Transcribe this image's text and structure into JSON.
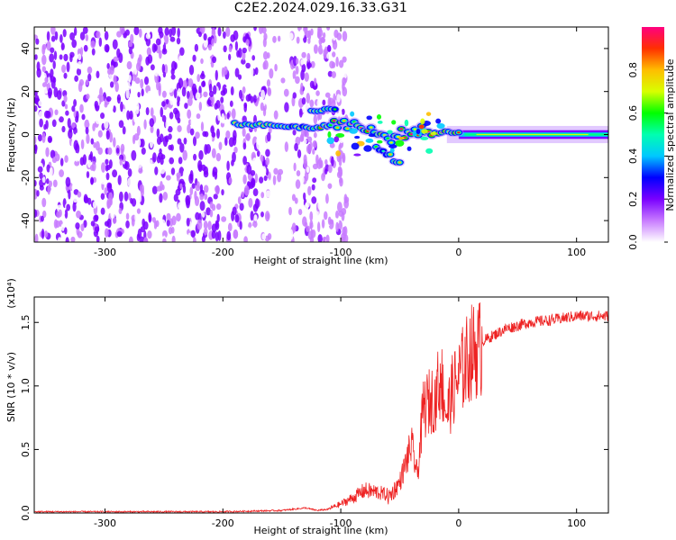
{
  "title": "C2E2.2024.029.16.33.G31",
  "chart_data": [
    {
      "type": "heatmap",
      "title": "",
      "xlabel": "Height of straight line (km)",
      "ylabel": "Frequency (Hz)",
      "xlim": [
        -360,
        127
      ],
      "ylim": [
        -50,
        50
      ],
      "xticks": [
        -300,
        -200,
        -100,
        0,
        100
      ],
      "yticks": [
        -40,
        -20,
        0,
        20,
        40
      ],
      "colorbar": {
        "label": "Normalized spectral amplitude",
        "range": [
          0.0,
          1.0
        ],
        "ticks": [
          "0.0",
          "0.2",
          "0.4",
          "0.6",
          "0.8"
        ],
        "colormap": [
          "#ffffff",
          "#c87bff",
          "#7a00ff",
          "#0000ff",
          "#00c8ff",
          "#00ffb0",
          "#00ff00",
          "#d8ff00",
          "#ffbe00",
          "#ff3000",
          "#ff0080"
        ]
      },
      "features": {
        "noise_region_x": [
          -360,
          -120
        ],
        "main_signal": [
          {
            "x": -190,
            "y": 5
          },
          {
            "x": -150,
            "y": 4
          },
          {
            "x": -120,
            "y": 3
          },
          {
            "x": -100,
            "y": 6
          },
          {
            "x": -80,
            "y": 3
          },
          {
            "x": -60,
            "y": -2
          },
          {
            "x": -40,
            "y": 2
          },
          {
            "x": -20,
            "y": 1
          },
          {
            "x": 0,
            "y": 1
          },
          {
            "x": 50,
            "y": 0
          },
          {
            "x": 127,
            "y": 0
          }
        ],
        "upper_branch": [
          {
            "x": -125,
            "y": 11
          },
          {
            "x": -105,
            "y": 12
          }
        ],
        "lower_branch": [
          {
            "x": -70,
            "y": -5
          },
          {
            "x": -55,
            "y": -12
          },
          {
            "x": -50,
            "y": -14
          }
        ]
      }
    },
    {
      "type": "line",
      "title": "",
      "xlabel": "Height of straight line (km)",
      "ylabel": "SNR (10 * v/v)",
      "scale_label": "(x10⁴)",
      "xlim": [
        -360,
        127
      ],
      "ylim": [
        0,
        1.7
      ],
      "xticks": [
        -300,
        -200,
        -100,
        0,
        100
      ],
      "yticks": [
        0.0,
        0.5,
        1.0,
        1.5
      ],
      "series": [
        {
          "color": "#ee2222",
          "x": [
            -360,
            -300,
            -250,
            -200,
            -150,
            -130,
            -120,
            -110,
            -100,
            -90,
            -80,
            -70,
            -60,
            -50,
            -45,
            -40,
            -35,
            -30,
            -25,
            -20,
            -15,
            -10,
            -5,
            0,
            5,
            10,
            20,
            30,
            40,
            60,
            80,
            100,
            127
          ],
          "y": [
            0.01,
            0.01,
            0.01,
            0.01,
            0.02,
            0.04,
            0.02,
            0.03,
            0.06,
            0.1,
            0.15,
            0.14,
            0.12,
            0.25,
            0.4,
            0.55,
            0.3,
            0.85,
            0.9,
            0.95,
            1.1,
            0.8,
            1.0,
            1.1,
            1.2,
            1.3,
            1.35,
            1.4,
            1.45,
            1.5,
            1.52,
            1.55,
            1.55
          ]
        }
      ]
    }
  ]
}
